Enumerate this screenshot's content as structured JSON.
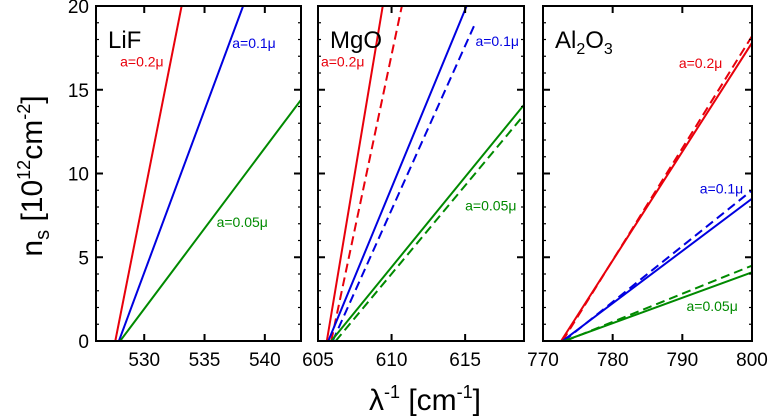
{
  "chart_data": [
    {
      "type": "line",
      "title": "LiF",
      "title_parts": [
        {
          "t": "LiF",
          "sub": false
        }
      ],
      "xlim": [
        526,
        543
      ],
      "ylim": [
        0,
        20
      ],
      "xticks": [
        530,
        535,
        540
      ],
      "yticks": [
        0,
        5,
        10,
        15,
        20
      ],
      "ylabel": "n",
      "ylabel_sub": "s",
      "ylabel_unit_open": "[10",
      "ylabel_unit_sup1": "12",
      "ylabel_unit_mid": "cm",
      "ylabel_unit_sup2": "-2",
      "ylabel_unit_close": "]",
      "series": [
        {
          "label": "a=0.2μ",
          "color": "#e8000b",
          "style": "solid",
          "x": [
            527.6,
            533.1
          ],
          "y": [
            0,
            20
          ]
        },
        {
          "label": "a=0.1μ",
          "color": "#0000e0",
          "style": "solid",
          "x": [
            527.9,
            538.2
          ],
          "y": [
            0,
            20
          ]
        },
        {
          "label": "a=0.05μ",
          "color": "#008a00",
          "style": "solid",
          "x": [
            528.0,
            543.0
          ],
          "y": [
            0,
            14.4
          ]
        }
      ],
      "annotations": [
        {
          "text": "a=0.2μ",
          "color": "#e8000b",
          "x": 528.0,
          "y": 16.4
        },
        {
          "text": "a=0.1μ",
          "color": "#0000e0",
          "x": 537.3,
          "y": 17.5
        },
        {
          "text": "a=0.05μ",
          "color": "#008a00",
          "x": 536.0,
          "y": 6.8
        }
      ]
    },
    {
      "type": "line",
      "title": "MgO",
      "title_parts": [
        {
          "t": "MgO",
          "sub": false
        }
      ],
      "xlim": [
        605,
        619
      ],
      "ylim": [
        0,
        20
      ],
      "xticks": [
        605,
        610,
        615
      ],
      "yticks": [
        0,
        5,
        10,
        15,
        20
      ],
      "series": [
        {
          "label": "a=0.2μ solid",
          "color": "#e8000b",
          "style": "solid",
          "x": [
            605.6,
            609.4
          ],
          "y": [
            0,
            20
          ]
        },
        {
          "label": "a=0.2μ dashed",
          "color": "#e8000b",
          "style": "dashed",
          "x": [
            605.9,
            610.7
          ],
          "y": [
            0,
            20
          ]
        },
        {
          "label": "a=0.1μ solid",
          "color": "#0000e0",
          "style": "solid",
          "x": [
            605.7,
            615.1
          ],
          "y": [
            0,
            20
          ]
        },
        {
          "label": "a=0.1μ dashed",
          "color": "#0000e0",
          "style": "dashed",
          "x": [
            606.0,
            615.6
          ],
          "y": [
            0,
            18.8
          ]
        },
        {
          "label": "a=0.05μ solid",
          "color": "#008a00",
          "style": "solid",
          "x": [
            605.9,
            619.0
          ],
          "y": [
            0,
            14.1
          ]
        },
        {
          "label": "a=0.05μ dashed",
          "color": "#008a00",
          "style": "dashed",
          "x": [
            606.2,
            619.0
          ],
          "y": [
            0,
            13.5
          ]
        }
      ],
      "annotations": [
        {
          "text": "a=0.2μ",
          "color": "#e8000b",
          "x": 605.2,
          "y": 16.4
        },
        {
          "text": "a=0.1μ",
          "color": "#0000e0",
          "x": 615.7,
          "y": 17.6
        },
        {
          "text": "a=0.05μ",
          "color": "#008a00",
          "x": 615.0,
          "y": 7.8
        }
      ]
    },
    {
      "type": "line",
      "title": "Al2O3",
      "title_parts": [
        {
          "t": "Al",
          "sub": false
        },
        {
          "t": "2",
          "sub": true
        },
        {
          "t": "O",
          "sub": false
        },
        {
          "t": "3",
          "sub": true
        }
      ],
      "xlim": [
        770,
        800
      ],
      "ylim": [
        0,
        20
      ],
      "xticks": [
        770,
        780,
        790,
        800
      ],
      "yticks": [
        0,
        5,
        10,
        15,
        20
      ],
      "series": [
        {
          "label": "a=0.2μ solid",
          "color": "#e8000b",
          "style": "solid",
          "x": [
            772.6,
            800
          ],
          "y": [
            0,
            17.8
          ]
        },
        {
          "label": "a=0.2μ dashed",
          "color": "#e8000b",
          "style": "dashed",
          "x": [
            772.8,
            800
          ],
          "y": [
            0,
            18.2
          ]
        },
        {
          "label": "a=0.1μ solid",
          "color": "#0000e0",
          "style": "solid",
          "x": [
            772.8,
            800
          ],
          "y": [
            0,
            8.5
          ]
        },
        {
          "label": "a=0.1μ dashed",
          "color": "#0000e0",
          "style": "dashed",
          "x": [
            773.0,
            800
          ],
          "y": [
            0,
            9.0
          ]
        },
        {
          "label": "a=0.05μ solid",
          "color": "#008a00",
          "style": "solid",
          "x": [
            773.0,
            800
          ],
          "y": [
            0,
            4.1
          ]
        },
        {
          "label": "a=0.05μ dashed",
          "color": "#008a00",
          "style": "dashed",
          "x": [
            773.2,
            800
          ],
          "y": [
            0,
            4.5
          ]
        }
      ],
      "annotations": [
        {
          "text": "a=0.2μ",
          "color": "#e8000b",
          "x": 789.5,
          "y": 16.3
        },
        {
          "text": "a=0.1μ",
          "color": "#0000e0",
          "x": 792.5,
          "y": 8.8
        },
        {
          "text": "a=0.05μ",
          "color": "#008a00",
          "x": 790.6,
          "y": 1.8
        }
      ]
    }
  ],
  "xlabel": {
    "main": "λ",
    "sup": "-1",
    "unit_open": " [cm",
    "unit_sup": "-1",
    "unit_close": "]"
  }
}
